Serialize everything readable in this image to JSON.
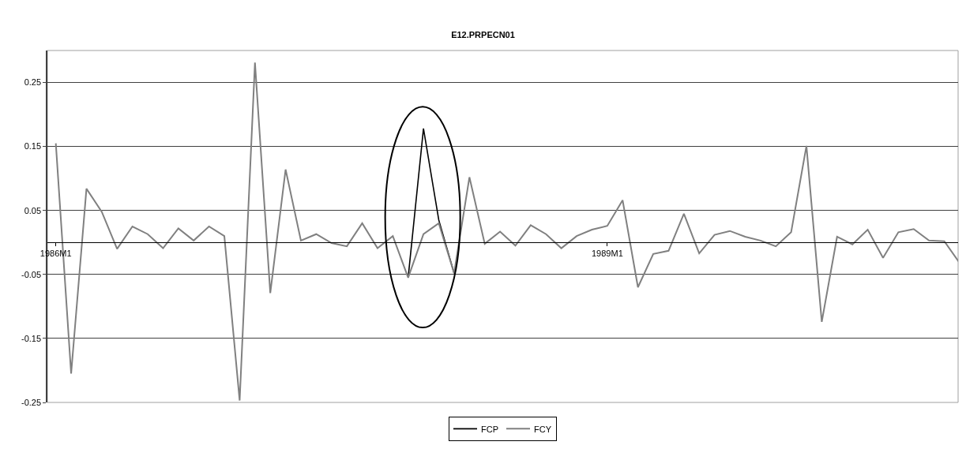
{
  "chart_data": {
    "type": "line",
    "title": "E12.PRPECN01",
    "categories": [
      "1986M1",
      null,
      null,
      null,
      null,
      null,
      null,
      null,
      null,
      null,
      null,
      null,
      null,
      null,
      null,
      null,
      null,
      null,
      null,
      null,
      null,
      null,
      null,
      null,
      null,
      null,
      null,
      null,
      null,
      null,
      null,
      null,
      null,
      null,
      null,
      null,
      "1989M1",
      null,
      null,
      null,
      null,
      null,
      null,
      null,
      null,
      null,
      null,
      null,
      null,
      null,
      null,
      null,
      null,
      null,
      null,
      null,
      null,
      null,
      null,
      null
    ],
    "series": [
      {
        "name": "FCP",
        "color": "#000000",
        "values": [
          null,
          null,
          null,
          null,
          null,
          null,
          null,
          null,
          null,
          null,
          null,
          null,
          null,
          null,
          null,
          null,
          null,
          null,
          null,
          null,
          null,
          null,
          null,
          -0.055,
          0.178,
          0.035,
          -0.048,
          null,
          null,
          null,
          null,
          null,
          null,
          null,
          null,
          null,
          null,
          null,
          null,
          null,
          null,
          null,
          null,
          null,
          null,
          null,
          null,
          null,
          null,
          null,
          null,
          null,
          null,
          null,
          null,
          null,
          null,
          null,
          null,
          null
        ]
      },
      {
        "name": "FCY",
        "color": "#808080",
        "values": [
          0.155,
          -0.205,
          0.084,
          0.048,
          -0.01,
          0.025,
          0.013,
          -0.009,
          0.022,
          0.003,
          0.025,
          0.01,
          -0.247,
          0.281,
          -0.079,
          0.114,
          0.003,
          0.013,
          -0.001,
          -0.006,
          0.03,
          -0.009,
          0.01,
          -0.055,
          0.013,
          0.03,
          -0.048,
          0.102,
          -0.002,
          0.017,
          -0.005,
          0.027,
          0.013,
          -0.009,
          0.01,
          0.02,
          0.026,
          0.066,
          -0.07,
          -0.018,
          -0.013,
          0.045,
          -0.017,
          0.012,
          0.018,
          0.009,
          0.003,
          -0.006,
          0.016,
          0.151,
          -0.124,
          0.009,
          -0.003,
          0.02,
          -0.024,
          0.016,
          0.021,
          0.003,
          0.002,
          -0.032
        ]
      }
    ],
    "ylim": [
      -0.25,
      0.3
    ],
    "yticks": [
      0.25,
      0.15,
      0.05,
      -0.05,
      -0.15,
      -0.25
    ],
    "grid": "y",
    "legend": "bottom",
    "marker": "none",
    "line_style": "solid"
  }
}
